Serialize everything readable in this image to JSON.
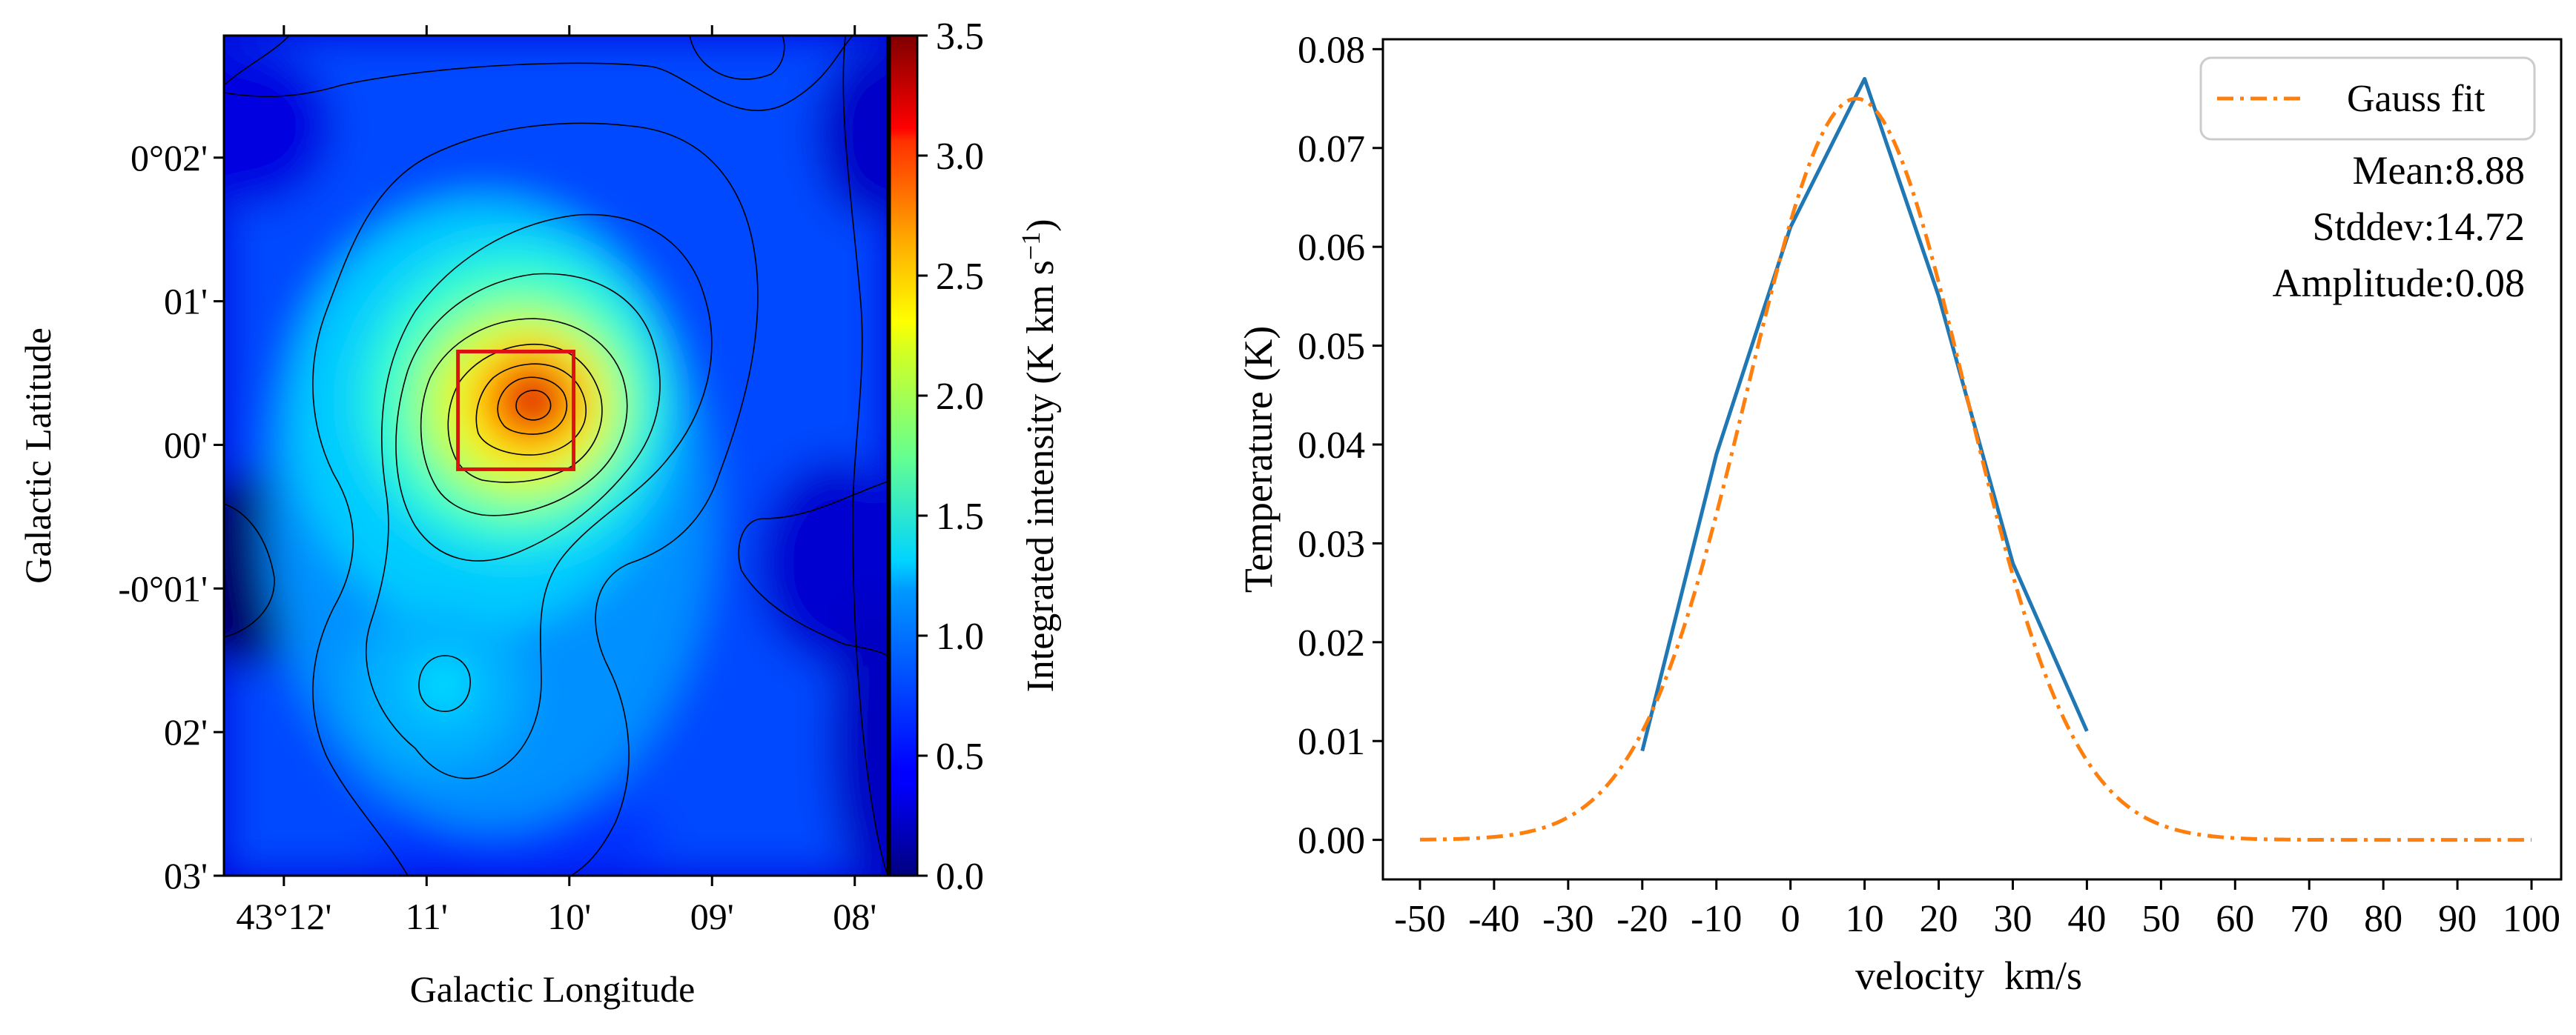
{
  "chart_data": [
    {
      "type": "heatmap",
      "xlabel": "Galactic Longitude",
      "ylabel": "Galactic Latitude",
      "x_tick_labels": [
        "43°12'",
        "11'",
        "10'",
        "09'",
        "08'"
      ],
      "y_tick_labels": [
        "0°02'",
        "01'",
        "00'",
        "-0°01'",
        "02'",
        "03'"
      ],
      "x_range_arcmin_from_43deg": [
        12.42,
        7.77
      ],
      "y_range_arcmin": [
        -3.0,
        2.85
      ],
      "colorbar": {
        "label": "Integrated intensity (K km s",
        "label_exponent": "−1",
        "label_suffix": ")",
        "range": [
          0.0,
          3.5
        ],
        "ticks": [
          "0.0",
          "0.5",
          "1.0",
          "1.5",
          "2.0",
          "2.5",
          "3.0",
          "3.5"
        ],
        "colormap": "jet"
      },
      "peak": {
        "value": 3.5,
        "l_arcmin": 10.37,
        "b_arcmin": 0.28
      },
      "secondary_peak": {
        "value": 1.1,
        "l_arcmin": 10.97,
        "b_arcmin": -1.68
      },
      "selection_box": {
        "l_arcmin": [
          10.78,
          9.97
        ],
        "b_arcmin": [
          -0.17,
          0.65
        ],
        "color": "#dd1111"
      }
    },
    {
      "type": "line",
      "xlabel": "velocity  km/s",
      "ylabel": "Temperature (K)",
      "xlim": [
        -55,
        104
      ],
      "ylim": [
        -0.004,
        0.081
      ],
      "x_ticks": [
        -50,
        -40,
        -30,
        -20,
        -10,
        0,
        10,
        20,
        30,
        40,
        50,
        60,
        70,
        80,
        90,
        100
      ],
      "x_tick_labels": [
        "-50",
        "-40",
        "-30",
        "-20",
        "-10",
        "0",
        "10",
        "20",
        "30",
        "40",
        "50",
        "60",
        "70",
        "80",
        "90",
        "100"
      ],
      "y_ticks": [
        0.0,
        0.01,
        0.02,
        0.03,
        0.04,
        0.05,
        0.06,
        0.07,
        0.08
      ],
      "y_tick_labels": [
        "0.00",
        "0.01",
        "0.02",
        "0.03",
        "0.04",
        "0.05",
        "0.06",
        "0.07",
        "0.08"
      ],
      "series": [
        {
          "style": "solid",
          "color": "#1f77b4",
          "x": [
            -20,
            -10,
            0,
            10,
            20,
            30,
            40
          ],
          "y": [
            0.009,
            0.039,
            0.062,
            0.077,
            0.055,
            0.028,
            0.011
          ]
        },
        {
          "name": "Gauss fit",
          "style": "dashdot",
          "color": "#ff7f0e",
          "x": [
            -50,
            -40,
            -30,
            -20,
            -10,
            0,
            10,
            20,
            30,
            40,
            50,
            60,
            70,
            80,
            90,
            100
          ],
          "y": [
            0.0,
            0.0009,
            0.0031,
            0.0131,
            0.0345,
            0.0626,
            0.0744,
            0.0565,
            0.0271,
            0.0083,
            0.0016,
            0.0002,
            0.0,
            0.0,
            0.0,
            0.0
          ]
        }
      ],
      "fit": {
        "mean": 8.88,
        "stddev": 14.72,
        "amplitude": 0.075
      },
      "legend_location": "upper right",
      "annotations": [
        "Mean:8.88",
        "Stddev:14.72",
        "Amplitude:0.08"
      ]
    }
  ]
}
